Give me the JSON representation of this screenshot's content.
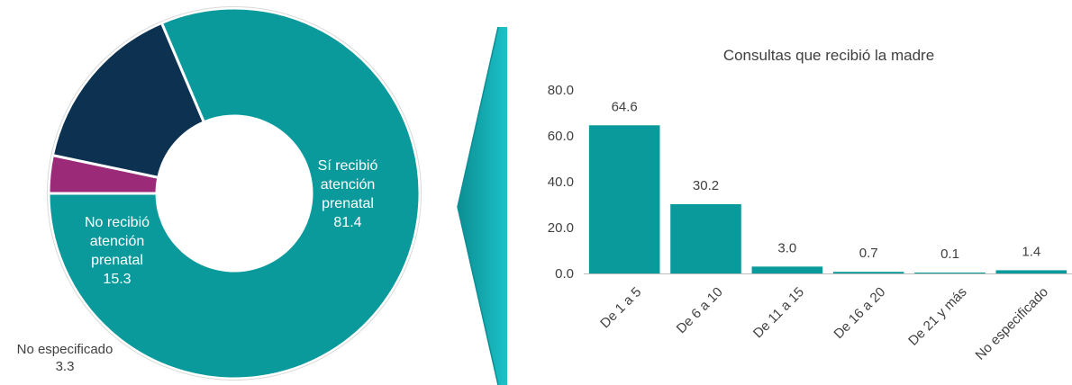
{
  "colors": {
    "teal": "#0A9A9C",
    "navy": "#0D3251",
    "magenta": "#9B2B78",
    "text": "#404040",
    "axis": "#BFBFBF",
    "arrow_light": "#1BC2C8",
    "arrow_dark": "#0B8E93"
  },
  "chart_data": [
    {
      "type": "pie",
      "donut": true,
      "slices": [
        {
          "label_lines": [
            "Sí recibió",
            "atención",
            "prenatal"
          ],
          "value": 81.4,
          "value_text": "81.4",
          "color": "#0A9A9C"
        },
        {
          "label_lines": [
            "No especificado"
          ],
          "value": 3.3,
          "value_text": "3.3",
          "color": "#9B2B78"
        },
        {
          "label_lines": [
            "No recibió",
            "atención",
            "prenatal"
          ],
          "value": 15.3,
          "value_text": "15.3",
          "color": "#0D3251"
        }
      ]
    },
    {
      "type": "bar",
      "title": "Consultas que recibió la madre",
      "categories": [
        "De 1 a 5",
        "De 6 a 10",
        "De 11 a 15",
        "De 16 a 20",
        "De 21 y más",
        "No especificado"
      ],
      "values": [
        64.6,
        30.2,
        3.0,
        0.7,
        0.1,
        1.4
      ],
      "value_labels": [
        "64.6",
        "30.2",
        "3.0",
        "0.7",
        "0.1",
        "1.4"
      ],
      "ylim": [
        0,
        80
      ],
      "yticks": [
        0,
        20,
        40,
        60,
        80
      ],
      "ytick_labels": [
        "0.0",
        "20.0",
        "40.0",
        "60.0",
        "80.0"
      ],
      "bar_color": "#0A9A9C",
      "xlabel": "",
      "ylabel": ""
    }
  ]
}
